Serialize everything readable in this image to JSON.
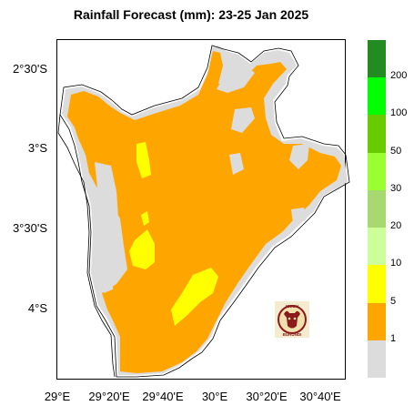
{
  "title": "Rainfall Forecast (mm): 23-25 Jan  2025",
  "y_ticks": [
    "2°30'S",
    "3°S",
    "3°30'S",
    "4°S"
  ],
  "x_ticks": [
    "29°E",
    "29°20'E",
    "29°40'E",
    "30°E",
    "30°20'E",
    "30°40'E"
  ],
  "legend": {
    "colors": [
      "#dcdcdc",
      "#ffa500",
      "#ffff00",
      "#ccff99",
      "#a8d870",
      "#99ff33",
      "#66cc00",
      "#00ff00",
      "#228b22"
    ],
    "labels": [
      "1",
      "5",
      "10",
      "20",
      "30",
      "50",
      "100",
      "200"
    ]
  },
  "logo": {
    "top_text": "IGEBU",
    "bottom_text": "BURUNDI",
    "icon": "bull-head-logo-icon"
  },
  "colors": {
    "orange": "#ffa500",
    "gray": "#dcdcdc",
    "yellow": "#ffff00"
  }
}
